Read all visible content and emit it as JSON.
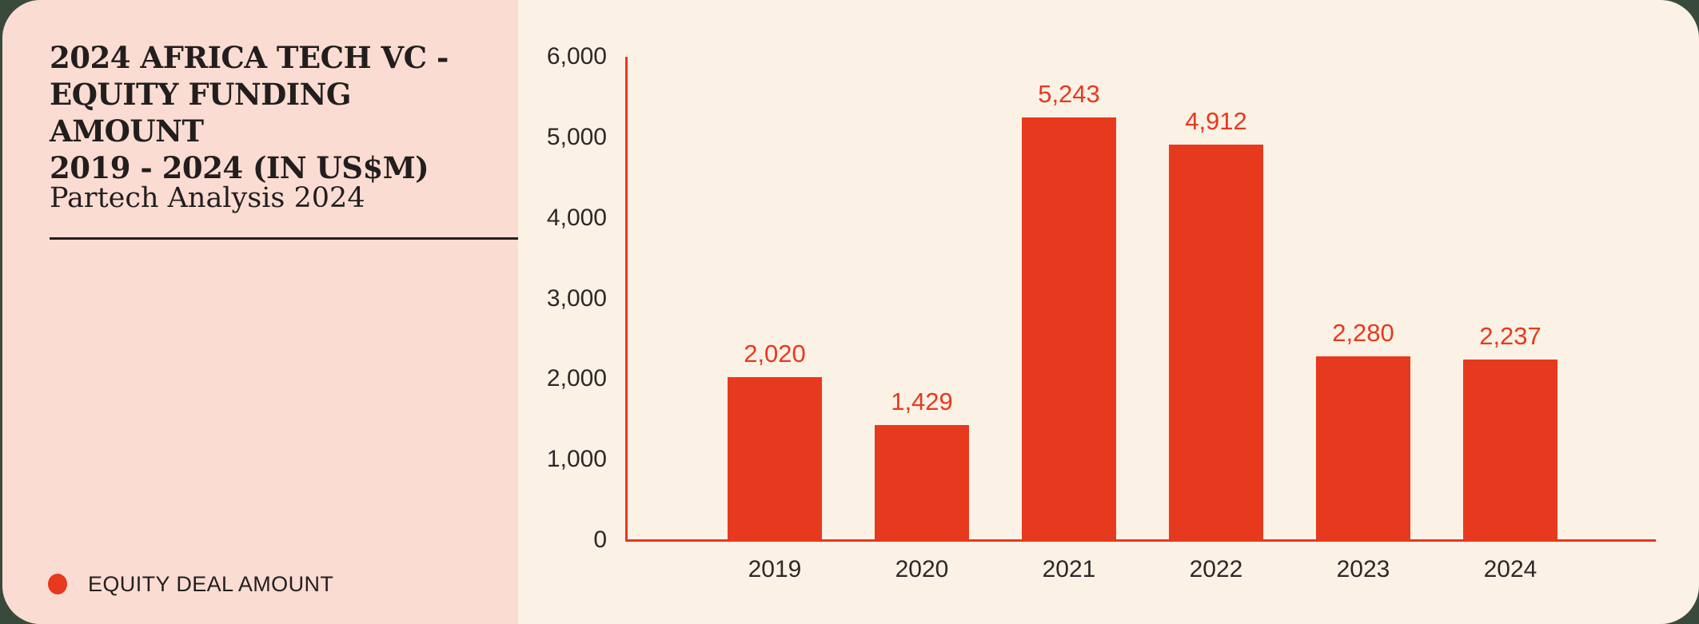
{
  "card": {
    "title_lines": [
      "2024 AFRICA TECH VC -",
      "EQUITY FUNDING AMOUNT",
      "2019 - 2024 (IN US$M)"
    ],
    "subtitle": "Partech Analysis 2024",
    "legend": {
      "label": "EQUITY DEAL AMOUNT",
      "dot_color": "#E7391E"
    }
  },
  "colors": {
    "page_background": "#394A3C",
    "panel_pink": "#FBDCD2",
    "panel_cream": "#FCF1E5",
    "accent_red": "#E7391E",
    "text_dark": "#221E1E",
    "tick_text": "#2B2828"
  },
  "chart_data": {
    "type": "bar",
    "title": "2024 Africa Tech VC - Equity Funding Amount 2019 - 2024 (in US$M)",
    "subtitle": "Partech Analysis 2024",
    "categories": [
      "2019",
      "2020",
      "2021",
      "2022",
      "2023",
      "2024"
    ],
    "series": [
      {
        "name": "EQUITY DEAL AMOUNT",
        "values": [
          2020,
          1429,
          5243,
          4912,
          2280,
          2237
        ]
      }
    ],
    "value_labels": [
      "2,020",
      "1,429",
      "5,243",
      "4,912",
      "2,280",
      "2,237"
    ],
    "y_ticks_values": [
      0,
      1000,
      2000,
      3000,
      4000,
      5000,
      6000
    ],
    "y_ticks_labels": [
      "0",
      "1,000",
      "2,000",
      "3,000",
      "4,000",
      "5,000",
      "6,000"
    ],
    "ylim": [
      0,
      6000
    ],
    "xlabel": "",
    "ylabel": "",
    "grid": false,
    "bar_color": "#E7391E",
    "legend_position": "bottom-left"
  }
}
